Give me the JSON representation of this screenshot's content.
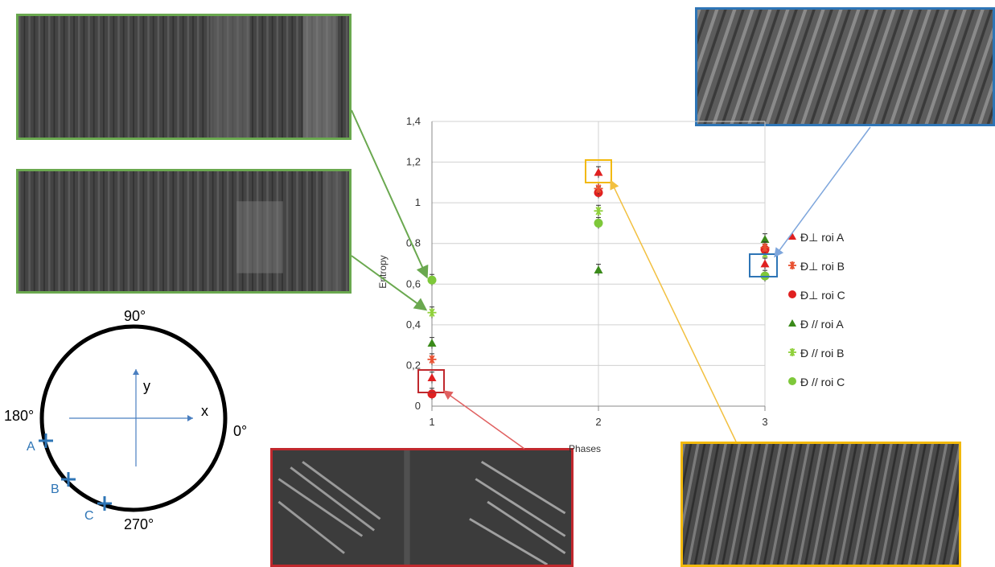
{
  "chart_data": {
    "type": "scatter",
    "xlabel": "Phases",
    "ylabel": "Entropy",
    "xlim": [
      1,
      3
    ],
    "ylim": [
      0,
      1.4
    ],
    "x_ticks": [
      "1",
      "2",
      "3"
    ],
    "y_ticks": [
      "0",
      "0,2",
      "0,4",
      "0,6",
      "0,8",
      "1",
      "1,2",
      "1,4"
    ],
    "grid": true,
    "legend_position": "right",
    "series": [
      {
        "name": "Ɖ⊥ roi A",
        "marker": "triangle",
        "color": "#e02020",
        "x": [
          1,
          2,
          3
        ],
        "y": [
          0.14,
          1.15,
          0.7
        ]
      },
      {
        "name": "Ɖ⊥ roi B",
        "marker": "asterisk",
        "color": "#e85030",
        "x": [
          1,
          2,
          3
        ],
        "y": [
          0.23,
          1.07,
          0.78
        ]
      },
      {
        "name": "Ɖ⊥ roi C",
        "marker": "circle",
        "color": "#e02020",
        "x": [
          1,
          2,
          3
        ],
        "y": [
          0.06,
          1.05,
          0.77
        ]
      },
      {
        "name": "Ɖ // roi A",
        "marker": "triangle",
        "color": "#3a8a1a",
        "x": [
          1,
          2,
          3
        ],
        "y": [
          0.31,
          0.67,
          0.82
        ]
      },
      {
        "name": "Ɖ // roi B",
        "marker": "asterisk",
        "color": "#8fd03a",
        "x": [
          1,
          2,
          3
        ],
        "y": [
          0.46,
          0.96,
          0.75
        ]
      },
      {
        "name": "Ɖ // roi C",
        "marker": "circle",
        "color": "#7ec83a",
        "x": [
          1,
          2,
          3
        ],
        "y": [
          0.62,
          0.9,
          0.64
        ]
      }
    ]
  },
  "diagram": {
    "angle_90": "90°",
    "angle_180": "180°",
    "angle_0": "0°",
    "angle_270": "270°",
    "axis_x": "x",
    "axis_y": "y",
    "point_a": "A",
    "point_b": "B",
    "point_c": "C"
  },
  "colors": {
    "green_frame": "#6aa84f",
    "blue_frame": "#2e75b6",
    "red_frame": "#c0282d",
    "yellow_frame": "#f2b90c",
    "diagram_blue": "#2e75b6"
  }
}
